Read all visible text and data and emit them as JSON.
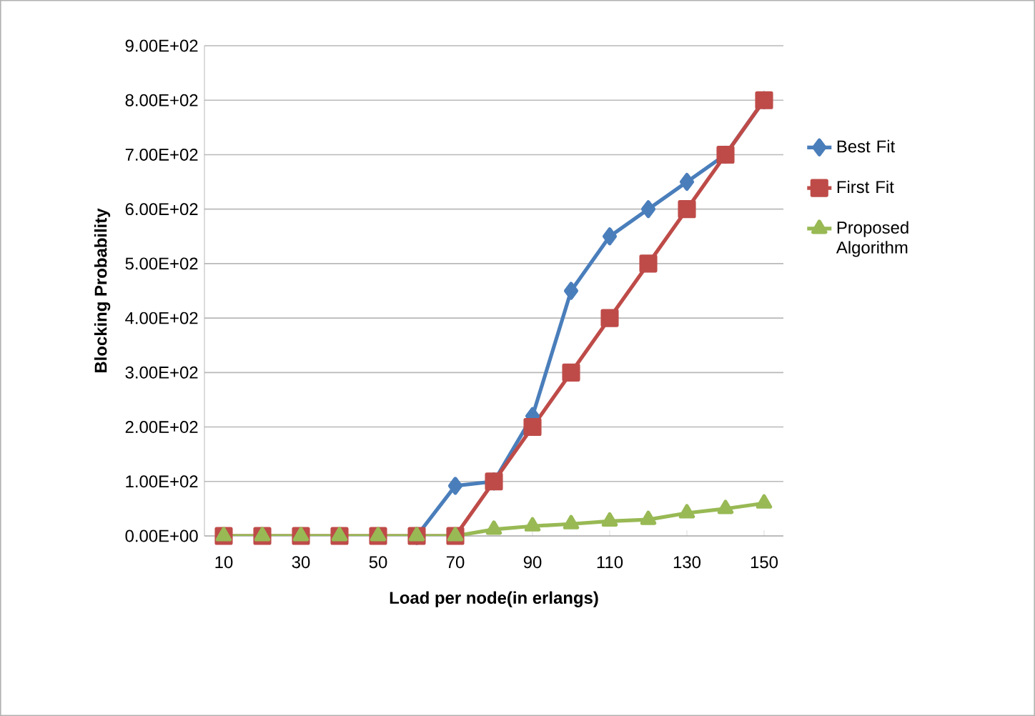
{
  "chart_data": {
    "type": "line",
    "xlabel": "Load per node(in erlangs)",
    "ylabel": "Blocking Probability",
    "categories": [
      "10",
      null,
      "30",
      null,
      "50",
      null,
      "70",
      null,
      "90",
      null,
      "110",
      null,
      "130",
      null,
      "150"
    ],
    "series": [
      {
        "name": "Best Fit",
        "color": "#4a7ebb",
        "marker": "diamond",
        "values": [
          null,
          null,
          null,
          null,
          null,
          0,
          92,
          100,
          220,
          450,
          550,
          600,
          650,
          700,
          800
        ]
      },
      {
        "name": "First Fit",
        "color": "#be4b48",
        "marker": "square",
        "values": [
          0,
          0,
          0,
          0,
          0,
          0,
          0,
          100,
          200,
          300,
          400,
          500,
          600,
          700,
          800
        ]
      },
      {
        "name": "Proposed Algorithm",
        "color": "#98b954",
        "marker": "triangle",
        "values": [
          0,
          0,
          0,
          0,
          0,
          0,
          0,
          12,
          18,
          22,
          27,
          30,
          42,
          50,
          60
        ]
      }
    ],
    "ylim": [
      0,
      900
    ],
    "yticks": [
      {
        "value": 0,
        "label": "0.00E+00"
      },
      {
        "value": 100,
        "label": "1.00E+02"
      },
      {
        "value": 200,
        "label": "2.00E+02"
      },
      {
        "value": 300,
        "label": "3.00E+02"
      },
      {
        "value": 400,
        "label": "4.00E+02"
      },
      {
        "value": 500,
        "label": "5.00E+02"
      },
      {
        "value": 600,
        "label": "6.00E+02"
      },
      {
        "value": 700,
        "label": "7.00E+02"
      },
      {
        "value": 800,
        "label": "8.00E+02"
      },
      {
        "value": 900,
        "label": "9.00E+02"
      }
    ],
    "grid": "y",
    "legend": "right",
    "line_style": "solid"
  }
}
